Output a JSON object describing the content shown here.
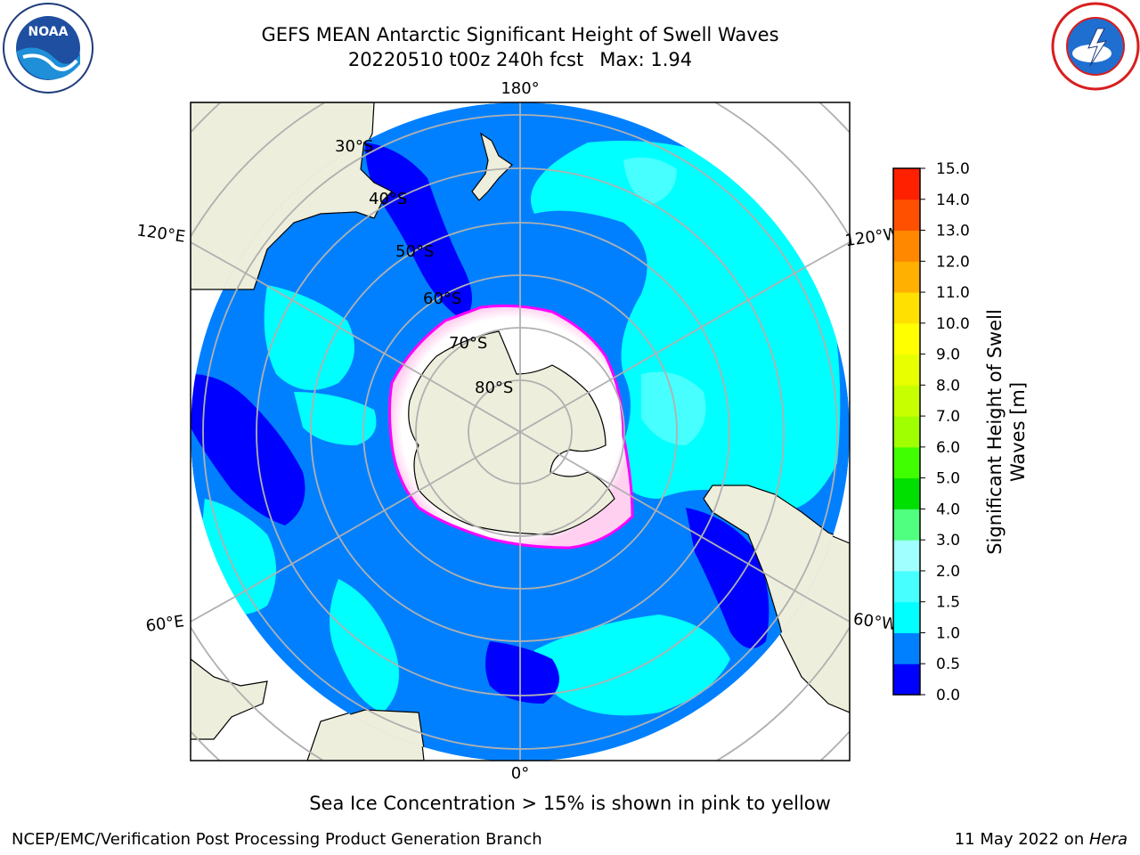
{
  "title": {
    "line1": "GEFS MEAN Antarctic Significant Height of Swell Waves",
    "run": "20220510 t00z 240h fcst",
    "max": "Max: 1.94"
  },
  "logos": {
    "left": "noaa-logo",
    "right": "nws-logo"
  },
  "map": {
    "projection": "south-polar-stereographic",
    "longitude_labels": [
      "180°",
      "120°E",
      "120°W",
      "60°E",
      "60°W",
      "0°"
    ],
    "latitude_labels": [
      "30°S",
      "40°S",
      "50°S",
      "60°S",
      "70°S",
      "80°S"
    ],
    "colors": {
      "ocean_base": "#0080ff",
      "land": "#eeeedc",
      "ice": "#ffffff",
      "ice_edge": "#ff00ff",
      "grid": "#b0b0b0"
    }
  },
  "colorbar": {
    "title_line1": "Significant Height of Swell",
    "title_line2": "Waves [m]",
    "ticks": [
      "0.0",
      "0.5",
      "1.0",
      "1.5",
      "2.0",
      "3.0",
      "4.0",
      "5.0",
      "6.0",
      "7.0",
      "8.0",
      "9.0",
      "10.0",
      "11.0",
      "12.0",
      "13.0",
      "14.0",
      "15.0"
    ],
    "colors": [
      "#0000ff",
      "#0080ff",
      "#00ffff",
      "#48ffff",
      "#a0ffff",
      "#50ff80",
      "#00e000",
      "#40ff00",
      "#a0ff00",
      "#c8ff00",
      "#e8ff00",
      "#ffff00",
      "#ffe000",
      "#ffb000",
      "#ff8800",
      "#ff5000",
      "#ff2000"
    ]
  },
  "note": "Sea Ice Concentration > 15% is shown in pink to yellow",
  "footer": {
    "left": "NCEP/EMC/Verification Post Processing Product Generation Branch",
    "right_prefix": "11 May 2022 on ",
    "right_host": "Hera"
  }
}
